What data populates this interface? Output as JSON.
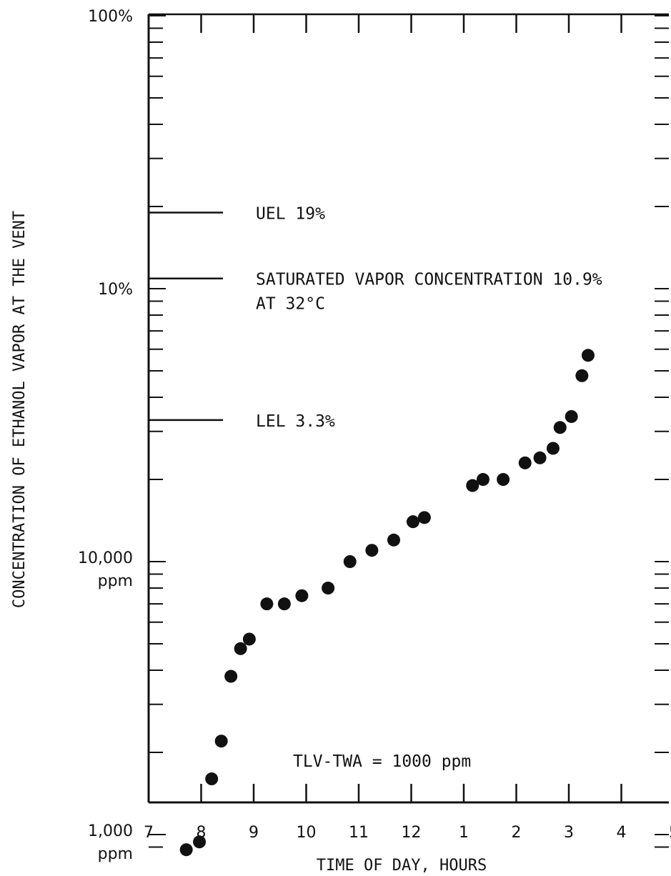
{
  "chart_data": {
    "type": "scatter",
    "xlabel": "TIME OF DAY, HOURS",
    "ylabel": "CONCENTRATION OF ETHANOL VAPOR AT THE VENT",
    "y_scale": "log",
    "y_unit": "ppm",
    "xlim": [
      7,
      5
    ],
    "ylim_ppm": [
      840,
      1000000
    ],
    "x_tick_labels": [
      "7",
      "8",
      "9",
      "10",
      "11",
      "12",
      "1",
      "2",
      "3",
      "4",
      "5"
    ],
    "y_tick_labels": [
      {
        "value_ppm": 1000000,
        "lines": [
          "100%"
        ]
      },
      {
        "value_ppm": 100000,
        "lines": [
          "10%"
        ]
      },
      {
        "value_ppm": 10000,
        "lines": [
          "10,000",
          "ppm"
        ]
      },
      {
        "value_ppm": 1000,
        "lines": [
          "1,000",
          "ppm"
        ]
      }
    ],
    "reference_lines": [
      {
        "value_ppm": 190000,
        "lines": [
          "UEL 19%"
        ]
      },
      {
        "value_ppm": 109000,
        "lines": [
          "SATURATED VAPOR CONCENTRATION 10.9%",
          "AT  32°C"
        ]
      },
      {
        "value_ppm": 33000,
        "lines": [
          "LEL 3.3%"
        ]
      }
    ],
    "annotation": "TLV-TWA = 1000 ppm",
    "points": [
      {
        "x": "7:43",
        "y": 880
      },
      {
        "x": "7:58",
        "y": 940
      },
      {
        "x": "8:12",
        "y": 1600
      },
      {
        "x": "8:23",
        "y": 2200
      },
      {
        "x": "8:34",
        "y": 3800
      },
      {
        "x": "8:45",
        "y": 4800
      },
      {
        "x": "8:55",
        "y": 5200
      },
      {
        "x": "9:15",
        "y": 7000
      },
      {
        "x": "9:35",
        "y": 7000
      },
      {
        "x": "9:55",
        "y": 7500
      },
      {
        "x": "10:25",
        "y": 8000
      },
      {
        "x": "10:50",
        "y": 10000
      },
      {
        "x": "11:15",
        "y": 11000
      },
      {
        "x": "11:40",
        "y": 12000
      },
      {
        "x": "12:02",
        "y": 14000
      },
      {
        "x": "12:15",
        "y": 14500
      },
      {
        "x": "13:10",
        "y": 19000
      },
      {
        "x": "13:22",
        "y": 20000
      },
      {
        "x": "13:45",
        "y": 20000
      },
      {
        "x": "14:10",
        "y": 23000
      },
      {
        "x": "14:27",
        "y": 24000
      },
      {
        "x": "14:42",
        "y": 26000
      },
      {
        "x": "14:50",
        "y": 31000
      },
      {
        "x": "15:03",
        "y": 34000
      },
      {
        "x": "15:15",
        "y": 48000
      },
      {
        "x": "15:22",
        "y": 57000
      }
    ]
  }
}
